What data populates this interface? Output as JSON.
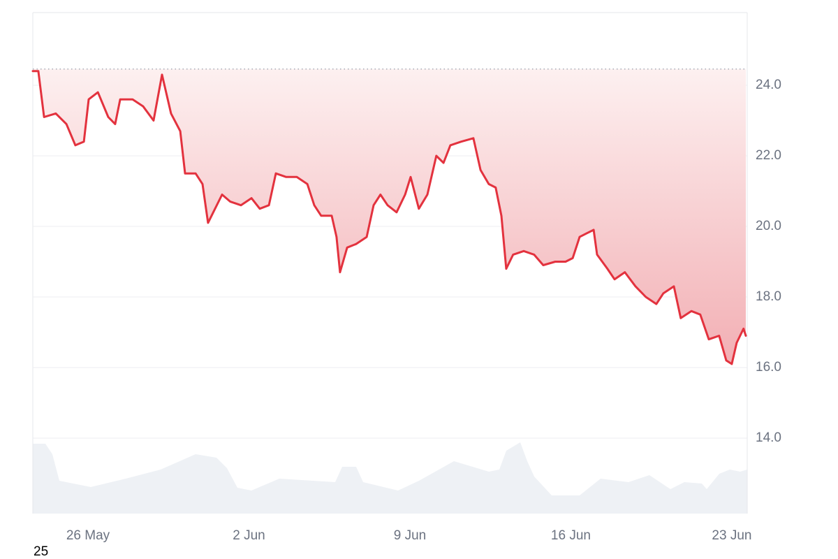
{
  "chart_data": {
    "type": "line",
    "color": "#e3323e",
    "x": [
      -2.4,
      -2.16,
      -1.91,
      -1.4,
      -0.94,
      -0.55,
      -0.18,
      0.03,
      0.43,
      0.88,
      1.18,
      1.4,
      1.94,
      2.4,
      2.85,
      3.22,
      3.61,
      4.01,
      4.22,
      4.68,
      4.98,
      5.22,
      5.83,
      6.19,
      6.65,
      7.11,
      7.47,
      7.87,
      8.17,
      8.62,
      9.08,
      9.54,
      9.84,
      10.14,
      10.6,
      10.81,
      10.96,
      11.27,
      11.66,
      12.12,
      12.42,
      12.72,
      13.03,
      13.42,
      13.79,
      14.03,
      14.39,
      14.76,
      15.15,
      15.46,
      15.76,
      16.22,
      16.76,
      17.07,
      17.43,
      17.73,
      17.98,
      18.19,
      18.49,
      18.95,
      19.4,
      19.8,
      20.32,
      20.77,
      21.08,
      21.38,
      21.68,
      21.99,
      22.14,
      22.59,
      22.9,
      23.35,
      23.81,
      24.26,
      24.72,
      25.02,
      25.48,
      25.78,
      26.24,
      26.63,
      27.0,
      27.45,
      27.76,
      28.0,
      28.21,
      28.51,
      28.61
    ],
    "values": [
      24.4,
      24.4,
      23.1,
      23.2,
      22.9,
      22.3,
      22.4,
      23.6,
      23.8,
      23.1,
      22.9,
      23.6,
      23.6,
      23.4,
      23.0,
      24.3,
      23.2,
      22.7,
      21.5,
      21.5,
      21.2,
      20.1,
      20.9,
      20.7,
      20.6,
      20.8,
      20.5,
      20.6,
      21.5,
      21.4,
      21.4,
      21.2,
      20.6,
      20.3,
      20.3,
      19.7,
      18.7,
      19.4,
      19.5,
      19.7,
      20.6,
      20.9,
      20.6,
      20.4,
      20.9,
      21.4,
      20.5,
      20.9,
      22.0,
      21.8,
      22.3,
      22.4,
      22.5,
      21.6,
      21.2,
      21.1,
      20.3,
      18.8,
      19.2,
      19.3,
      19.2,
      18.9,
      19.0,
      19.0,
      19.1,
      19.7,
      19.8,
      19.9,
      19.2,
      18.8,
      18.5,
      18.7,
      18.3,
      18.0,
      17.8,
      18.1,
      18.3,
      17.4,
      17.6,
      17.5,
      16.8,
      16.9,
      16.2,
      16.1,
      16.7,
      17.1,
      16.9
    ],
    "reference_line": 24.46,
    "xlim": [
      -2.4,
      28.67
    ],
    "ylim": [
      11.86,
      26.06
    ],
    "xticks": [
      {
        "value": 0,
        "label": "26 May"
      },
      {
        "value": 7,
        "label": "2 Jun"
      },
      {
        "value": 14,
        "label": "9 Jun"
      },
      {
        "value": 21,
        "label": "16 Jun"
      },
      {
        "value": 28,
        "label": "23 Jun"
      }
    ],
    "yticks": [
      {
        "value": 14,
        "label": "14.0"
      },
      {
        "value": 16,
        "label": "16.0"
      },
      {
        "value": 18,
        "label": "18.0"
      },
      {
        "value": 20,
        "label": "20.0"
      },
      {
        "value": 22,
        "label": "22.0"
      },
      {
        "value": 24,
        "label": "24.0"
      }
    ],
    "grid": true,
    "corner_label": "25"
  }
}
